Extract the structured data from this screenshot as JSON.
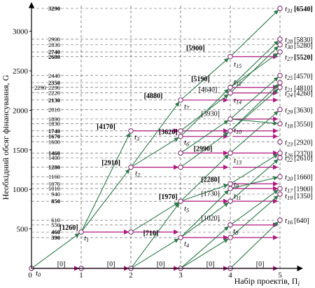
{
  "x_axis": {
    "label": "Набір проектів, Π",
    "label_sub": "i",
    "ticks": [
      "0",
      "1",
      "2",
      "3",
      "4",
      "5"
    ]
  },
  "y_axis": {
    "label": "Необхідний обсяг фінансування, G",
    "ticks": [
      "500",
      "1000",
      "1500",
      "2000",
      "2500",
      "3000"
    ],
    "range": [
      0,
      3400
    ]
  },
  "level_labels": [
    {
      "v": 3290,
      "t": "3290",
      "b": true
    },
    {
      "v": 2900,
      "t": "2900",
      "b": false
    },
    {
      "v": 2830,
      "t": "2830",
      "b": false
    },
    {
      "v": 2740,
      "t": "2740",
      "b": true
    },
    {
      "v": 2680,
      "t": "2680",
      "b": true
    },
    {
      "v": 2440,
      "t": "2440",
      "b": false
    },
    {
      "v": 2350,
      "t": "2350",
      "b": true
    },
    {
      "v": 2290,
      "t": "2290",
      "b": false
    },
    {
      "v": 2220,
      "t": "2220",
      "b": false
    },
    {
      "v": 2130,
      "t": "2130",
      "b": true
    },
    {
      "v": 2010,
      "t": "2010",
      "b": false
    },
    {
      "v": 1890,
      "t": "1890",
      "b": false
    },
    {
      "v": 1830,
      "t": "1830",
      "b": false
    },
    {
      "v": 1740,
      "t": "1740",
      "b": true
    },
    {
      "v": 1670,
      "t": "1670",
      "b": true
    },
    {
      "v": 1600,
      "t": "1600",
      "b": false
    },
    {
      "v": 1460,
      "t": "1460",
      "b": true
    },
    {
      "v": 1400,
      "t": "1400",
      "b": false
    },
    {
      "v": 1280,
      "t": "1280",
      "b": true
    },
    {
      "v": 1160,
      "t": "1160",
      "b": false
    },
    {
      "v": 1070,
      "t": "1070",
      "b": false
    },
    {
      "v": 1010,
      "t": "1010",
      "b": false
    },
    {
      "v": 940,
      "t": "940",
      "b": false
    },
    {
      "v": 850,
      "t": "850",
      "b": true
    },
    {
      "v": 610,
      "t": "610",
      "b": false
    },
    {
      "v": 550,
      "t": "550",
      "b": false
    },
    {
      "v": 460,
      "t": "460",
      "b": true
    },
    {
      "v": 390,
      "t": "390",
      "b": true
    }
  ],
  "extra_left_label": {
    "v": 2290,
    "t": "2290"
  },
  "nodes": [
    {
      "x": 0,
      "v": 0
    },
    {
      "x": 1,
      "v": 0
    },
    {
      "x": 1,
      "v": 460
    },
    {
      "x": 2,
      "v": 0
    },
    {
      "x": 2,
      "v": 1280
    },
    {
      "x": 2,
      "v": 1740
    },
    {
      "x": 2,
      "v": 460
    },
    {
      "x": 3,
      "v": 0
    },
    {
      "x": 3,
      "v": 390
    },
    {
      "x": 3,
      "v": 850
    },
    {
      "x": 3,
      "v": 1280
    },
    {
      "x": 3,
      "v": 1460
    },
    {
      "x": 3,
      "v": 1670
    },
    {
      "x": 3,
      "v": 1740
    },
    {
      "x": 3,
      "v": 2130
    },
    {
      "x": 4,
      "v": 0
    },
    {
      "x": 4,
      "v": 390
    },
    {
      "x": 4,
      "v": 550
    },
    {
      "x": 4,
      "v": 850
    },
    {
      "x": 4,
      "v": 1010
    },
    {
      "x": 4,
      "v": 1070
    },
    {
      "x": 4,
      "v": 1460
    },
    {
      "x": 4,
      "v": 1740
    },
    {
      "x": 4,
      "v": 1890
    },
    {
      "x": 4,
      "v": 2220
    },
    {
      "x": 4,
      "v": 2290
    },
    {
      "x": 4,
      "v": 2680
    },
    {
      "x": 5,
      "v": 3290
    },
    {
      "x": 5,
      "v": 2900
    },
    {
      "x": 5,
      "v": 2830
    },
    {
      "x": 5,
      "v": 2740
    },
    {
      "x": 5,
      "v": 2440
    },
    {
      "x": 5,
      "v": 2350
    },
    {
      "x": 5,
      "v": 2290
    },
    {
      "x": 5,
      "v": 2010
    },
    {
      "x": 5,
      "v": 1830
    },
    {
      "x": 5,
      "v": 1600
    },
    {
      "x": 5,
      "v": 1460
    },
    {
      "x": 5,
      "v": 1400
    },
    {
      "x": 5,
      "v": 1160
    },
    {
      "x": 5,
      "v": 1010
    },
    {
      "x": 5,
      "v": 940
    },
    {
      "x": 5,
      "v": 610
    }
  ],
  "edges_green": [
    [
      0,
      0,
      1,
      460
    ],
    [
      1,
      460,
      2,
      1280
    ],
    [
      1,
      460,
      2,
      1740
    ],
    [
      2,
      0,
      3,
      390
    ],
    [
      2,
      0,
      3,
      850
    ],
    [
      2,
      460,
      3,
      850
    ],
    [
      2,
      1280,
      3,
      1670
    ],
    [
      2,
      1280,
      3,
      2130
    ],
    [
      3,
      0,
      4,
      390
    ],
    [
      3,
      0,
      4,
      550
    ],
    [
      3,
      390,
      4,
      850
    ],
    [
      3,
      390,
      4,
      1010
    ],
    [
      3,
      850,
      4,
      1460
    ],
    [
      3,
      850,
      4,
      1070
    ],
    [
      3,
      1280,
      4,
      1740
    ],
    [
      3,
      1460,
      4,
      1890
    ],
    [
      3,
      1740,
      4,
      2220
    ],
    [
      3,
      2130,
      4,
      2680
    ],
    [
      3,
      1670,
      4,
      2290
    ],
    [
      4,
      0,
      5,
      610
    ],
    [
      4,
      390,
      5,
      940
    ],
    [
      4,
      550,
      5,
      1010
    ],
    [
      4,
      850,
      5,
      1400
    ],
    [
      4,
      1010,
      5,
      1160
    ],
    [
      4,
      1070,
      5,
      1460
    ],
    [
      4,
      1460,
      5,
      2010
    ],
    [
      4,
      1740,
      5,
      2290
    ],
    [
      4,
      1890,
      5,
      2440
    ],
    [
      4,
      2220,
      5,
      2830
    ],
    [
      4,
      2290,
      5,
      2900
    ],
    [
      4,
      2680,
      5,
      3290
    ],
    [
      4,
      1740,
      5,
      2350
    ],
    [
      4,
      2290,
      5,
      2740
    ],
    [
      4,
      1890,
      5,
      1830
    ]
  ],
  "edges_magenta": [
    [
      0,
      0,
      1,
      0
    ],
    [
      1,
      0,
      2,
      0
    ],
    [
      2,
      0,
      3,
      0
    ],
    [
      3,
      0,
      4,
      0
    ],
    [
      4,
      0,
      5,
      0
    ],
    [
      1,
      460,
      2,
      460
    ],
    [
      2,
      460,
      3,
      460
    ],
    [
      2,
      1280,
      3,
      1280
    ],
    [
      2,
      1740,
      3,
      1740
    ],
    [
      3,
      390,
      4,
      390
    ],
    [
      3,
      850,
      4,
      850
    ],
    [
      3,
      1280,
      4,
      1280
    ],
    [
      3,
      1460,
      4,
      1460
    ],
    [
      3,
      1670,
      4,
      1670
    ],
    [
      3,
      1740,
      4,
      1740
    ],
    [
      3,
      2130,
      4,
      2130
    ],
    [
      4,
      390,
      5,
      390
    ],
    [
      4,
      550,
      5,
      550
    ],
    [
      4,
      850,
      5,
      850
    ],
    [
      4,
      1010,
      5,
      1010
    ],
    [
      4,
      1070,
      5,
      1070
    ],
    [
      4,
      1460,
      5,
      1460
    ],
    [
      4,
      1740,
      5,
      1740
    ],
    [
      4,
      1890,
      5,
      1890
    ],
    [
      4,
      2220,
      5,
      2220
    ],
    [
      4,
      2290,
      5,
      2290
    ],
    [
      4,
      2680,
      5,
      2680
    ],
    [
      4,
      1280,
      5,
      1280
    ],
    [
      4,
      1670,
      5,
      1670
    ],
    [
      4,
      2130,
      5,
      2130
    ]
  ],
  "edge_labels": [
    {
      "x": 0.6,
      "v": 0,
      "t": "[0]",
      "b": false
    },
    {
      "x": 1.6,
      "v": 0,
      "t": "[0]",
      "b": false
    },
    {
      "x": 2.6,
      "v": 0,
      "t": "[0]",
      "b": false
    },
    {
      "x": 3.6,
      "v": 0,
      "t": "[0]",
      "b": false
    },
    {
      "x": 4.6,
      "v": 0,
      "t": "[0]",
      "b": false
    },
    {
      "x": 0.75,
      "v": 460,
      "t": "[1260]",
      "b": true
    },
    {
      "x": 1.6,
      "v": 1280,
      "t": "[2910]",
      "b": true
    },
    {
      "x": 1.5,
      "v": 1740,
      "t": "[4170]",
      "b": true
    },
    {
      "x": 2.45,
      "v": 2130,
      "t": "[4880]",
      "b": true
    },
    {
      "x": 2.75,
      "v": 1670,
      "t": "[3620]",
      "b": true
    },
    {
      "x": 2.75,
      "v": 850,
      "t": "[1970]",
      "b": true
    },
    {
      "x": 2.4,
      "v": 390,
      "t": "[710]",
      "b": true
    },
    {
      "x": 3.6,
      "v": 1070,
      "t": "[2280]",
      "b": true
    },
    {
      "x": 3.6,
      "v": 890,
      "t": "[1730]",
      "b": false
    },
    {
      "x": 3.45,
      "v": 1460,
      "t": "[2990]",
      "b": true
    },
    {
      "x": 3.6,
      "v": 1900,
      "t": "[3930]",
      "b": false
    },
    {
      "x": 3.4,
      "v": 2340,
      "t": "[5190]",
      "b": true
    },
    {
      "x": 3.55,
      "v": 2210,
      "t": "[4640]",
      "b": false
    },
    {
      "x": 3.3,
      "v": 2730,
      "t": "[5900]",
      "b": true
    },
    {
      "x": 3.6,
      "v": 580,
      "t": "[1020]",
      "b": false
    }
  ],
  "t_labels": [
    {
      "x": 0,
      "v": 0,
      "n": "0",
      "dx": 6,
      "dy": 10
    },
    {
      "x": 1,
      "v": 460,
      "n": "1",
      "dx": 4,
      "dy": 12
    },
    {
      "x": 2,
      "v": 1280,
      "n": "2",
      "dx": 6,
      "dy": 12
    },
    {
      "x": 2,
      "v": 1740,
      "n": "3",
      "dx": 5,
      "dy": 12
    },
    {
      "x": 3,
      "v": 390,
      "n": "4",
      "dx": 5,
      "dy": 12
    },
    {
      "x": 3,
      "v": 850,
      "n": "5",
      "dx": 5,
      "dy": 14
    },
    {
      "x": 3,
      "v": 1670,
      "n": "6",
      "dx": 5,
      "dy": 12
    },
    {
      "x": 3,
      "v": 2130,
      "n": "7",
      "dx": 5,
      "dy": 12
    },
    {
      "x": 4,
      "v": 550,
      "n": "8",
      "dx": 4,
      "dy": 12
    },
    {
      "x": 4,
      "v": 1070,
      "n": "9",
      "dx": 5,
      "dy": 4
    },
    {
      "x": 4,
      "v": 1740,
      "n": "10",
      "dx": 5,
      "dy": 2
    },
    {
      "x": 4,
      "v": 1010,
      "n": "11",
      "dx": 5,
      "dy": 14
    },
    {
      "x": 4,
      "v": 2350,
      "n": "12",
      "dx": 5,
      "dy": 2
    },
    {
      "x": 4,
      "v": 1460,
      "n": "13",
      "dx": 5,
      "dy": 14
    },
    {
      "x": 4,
      "v": 2220,
      "n": "14",
      "dx": 5,
      "dy": 14
    },
    {
      "x": 4,
      "v": 2680,
      "n": "15",
      "dx": 5,
      "dy": 14
    },
    {
      "x": 5,
      "v": 610,
      "n": "16",
      "dx": 7,
      "dy": 4
    },
    {
      "x": 5,
      "v": 1010,
      "n": "17",
      "dx": 7,
      "dy": 4
    },
    {
      "x": 5,
      "v": 1830,
      "n": "18",
      "dx": 7,
      "dy": 4
    },
    {
      "x": 5,
      "v": 940,
      "n": "19",
      "dx": 7,
      "dy": 6
    },
    {
      "x": 5,
      "v": 1160,
      "n": "20",
      "dx": 7,
      "dy": 4
    },
    {
      "x": 5,
      "v": 2290,
      "n": "21",
      "dx": 7,
      "dy": 4
    },
    {
      "x": 5,
      "v": 1400,
      "n": "22",
      "dx": 7,
      "dy": 4
    },
    {
      "x": 5,
      "v": 1600,
      "n": "23",
      "dx": 7,
      "dy": 4
    },
    {
      "x": 5,
      "v": 2220,
      "n": "24",
      "dx": 7,
      "dy": 4
    },
    {
      "x": 5,
      "v": 2440,
      "n": "25",
      "dx": 7,
      "dy": 4
    },
    {
      "x": 5,
      "v": 1460,
      "n": "26",
      "dx": 7,
      "dy": 4
    },
    {
      "x": 5,
      "v": 2680,
      "n": "27",
      "dx": 7,
      "dy": 4
    },
    {
      "x": 5,
      "v": 2900,
      "n": "28",
      "dx": 7,
      "dy": 4
    },
    {
      "x": 5,
      "v": 2010,
      "n": "29",
      "dx": 7,
      "dy": 4
    },
    {
      "x": 5,
      "v": 2830,
      "n": "30",
      "dx": 7,
      "dy": 4
    },
    {
      "x": 5,
      "v": 3290,
      "n": "31",
      "dx": 7,
      "dy": 4
    }
  ],
  "right_values": [
    {
      "n": "31",
      "t": "[6540]",
      "b": true
    },
    {
      "n": "28",
      "t": "[5830]",
      "b": false
    },
    {
      "n": "30",
      "t": "[5280]",
      "b": false
    },
    {
      "n": "27",
      "t": "[5520]",
      "b": true
    },
    {
      "n": "25",
      "t": "[4570]",
      "b": false
    },
    {
      "n": "21",
      "t": "[4810]",
      "b": false
    },
    {
      "n": "24",
      "t": "[4260]",
      "b": false
    },
    {
      "n": "29",
      "t": "[3630]",
      "b": false
    },
    {
      "n": "18",
      "t": "[3550]",
      "b": false
    },
    {
      "n": "23",
      "t": "[2920]",
      "b": false
    },
    {
      "n": "26",
      "t": "[2370]",
      "b": false
    },
    {
      "n": "22",
      "t": "[2610]",
      "b": false
    },
    {
      "n": "20",
      "t": "[1660]",
      "b": false
    },
    {
      "n": "17",
      "t": "[1900]",
      "b": false
    },
    {
      "n": "19",
      "t": "[1350]",
      "b": false
    },
    {
      "n": "16",
      "t": "[640]",
      "b": false
    }
  ],
  "colors": {
    "green": "#2e7a4a",
    "magenta": "#b0177f",
    "grid": "#555555"
  }
}
